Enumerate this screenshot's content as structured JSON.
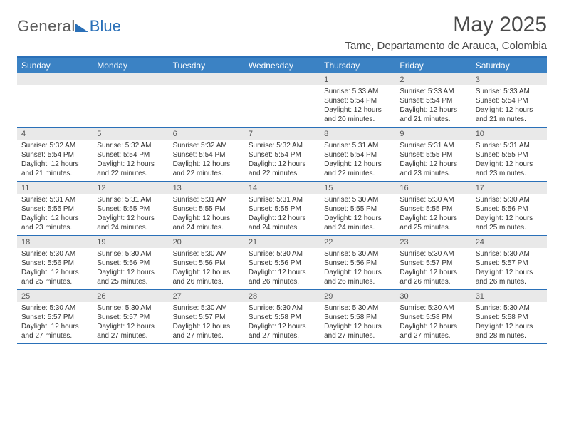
{
  "brand": {
    "part1": "General",
    "part2": "Blue"
  },
  "title": "May 2025",
  "location": "Tame, Departamento de Arauca, Colombia",
  "header_bg": "#3b82c4",
  "rule_color": "#2a70b8",
  "daynum_bg": "#e9e9e9",
  "weekdays": [
    "Sunday",
    "Monday",
    "Tuesday",
    "Wednesday",
    "Thursday",
    "Friday",
    "Saturday"
  ],
  "weeks": [
    [
      {
        "n": "",
        "sr": "",
        "ss": "",
        "dl": ""
      },
      {
        "n": "",
        "sr": "",
        "ss": "",
        "dl": ""
      },
      {
        "n": "",
        "sr": "",
        "ss": "",
        "dl": ""
      },
      {
        "n": "",
        "sr": "",
        "ss": "",
        "dl": ""
      },
      {
        "n": "1",
        "sr": "Sunrise: 5:33 AM",
        "ss": "Sunset: 5:54 PM",
        "dl": "Daylight: 12 hours and 20 minutes."
      },
      {
        "n": "2",
        "sr": "Sunrise: 5:33 AM",
        "ss": "Sunset: 5:54 PM",
        "dl": "Daylight: 12 hours and 21 minutes."
      },
      {
        "n": "3",
        "sr": "Sunrise: 5:33 AM",
        "ss": "Sunset: 5:54 PM",
        "dl": "Daylight: 12 hours and 21 minutes."
      }
    ],
    [
      {
        "n": "4",
        "sr": "Sunrise: 5:32 AM",
        "ss": "Sunset: 5:54 PM",
        "dl": "Daylight: 12 hours and 21 minutes."
      },
      {
        "n": "5",
        "sr": "Sunrise: 5:32 AM",
        "ss": "Sunset: 5:54 PM",
        "dl": "Daylight: 12 hours and 22 minutes."
      },
      {
        "n": "6",
        "sr": "Sunrise: 5:32 AM",
        "ss": "Sunset: 5:54 PM",
        "dl": "Daylight: 12 hours and 22 minutes."
      },
      {
        "n": "7",
        "sr": "Sunrise: 5:32 AM",
        "ss": "Sunset: 5:54 PM",
        "dl": "Daylight: 12 hours and 22 minutes."
      },
      {
        "n": "8",
        "sr": "Sunrise: 5:31 AM",
        "ss": "Sunset: 5:54 PM",
        "dl": "Daylight: 12 hours and 22 minutes."
      },
      {
        "n": "9",
        "sr": "Sunrise: 5:31 AM",
        "ss": "Sunset: 5:55 PM",
        "dl": "Daylight: 12 hours and 23 minutes."
      },
      {
        "n": "10",
        "sr": "Sunrise: 5:31 AM",
        "ss": "Sunset: 5:55 PM",
        "dl": "Daylight: 12 hours and 23 minutes."
      }
    ],
    [
      {
        "n": "11",
        "sr": "Sunrise: 5:31 AM",
        "ss": "Sunset: 5:55 PM",
        "dl": "Daylight: 12 hours and 23 minutes."
      },
      {
        "n": "12",
        "sr": "Sunrise: 5:31 AM",
        "ss": "Sunset: 5:55 PM",
        "dl": "Daylight: 12 hours and 24 minutes."
      },
      {
        "n": "13",
        "sr": "Sunrise: 5:31 AM",
        "ss": "Sunset: 5:55 PM",
        "dl": "Daylight: 12 hours and 24 minutes."
      },
      {
        "n": "14",
        "sr": "Sunrise: 5:31 AM",
        "ss": "Sunset: 5:55 PM",
        "dl": "Daylight: 12 hours and 24 minutes."
      },
      {
        "n": "15",
        "sr": "Sunrise: 5:30 AM",
        "ss": "Sunset: 5:55 PM",
        "dl": "Daylight: 12 hours and 24 minutes."
      },
      {
        "n": "16",
        "sr": "Sunrise: 5:30 AM",
        "ss": "Sunset: 5:55 PM",
        "dl": "Daylight: 12 hours and 25 minutes."
      },
      {
        "n": "17",
        "sr": "Sunrise: 5:30 AM",
        "ss": "Sunset: 5:56 PM",
        "dl": "Daylight: 12 hours and 25 minutes."
      }
    ],
    [
      {
        "n": "18",
        "sr": "Sunrise: 5:30 AM",
        "ss": "Sunset: 5:56 PM",
        "dl": "Daylight: 12 hours and 25 minutes."
      },
      {
        "n": "19",
        "sr": "Sunrise: 5:30 AM",
        "ss": "Sunset: 5:56 PM",
        "dl": "Daylight: 12 hours and 25 minutes."
      },
      {
        "n": "20",
        "sr": "Sunrise: 5:30 AM",
        "ss": "Sunset: 5:56 PM",
        "dl": "Daylight: 12 hours and 26 minutes."
      },
      {
        "n": "21",
        "sr": "Sunrise: 5:30 AM",
        "ss": "Sunset: 5:56 PM",
        "dl": "Daylight: 12 hours and 26 minutes."
      },
      {
        "n": "22",
        "sr": "Sunrise: 5:30 AM",
        "ss": "Sunset: 5:56 PM",
        "dl": "Daylight: 12 hours and 26 minutes."
      },
      {
        "n": "23",
        "sr": "Sunrise: 5:30 AM",
        "ss": "Sunset: 5:57 PM",
        "dl": "Daylight: 12 hours and 26 minutes."
      },
      {
        "n": "24",
        "sr": "Sunrise: 5:30 AM",
        "ss": "Sunset: 5:57 PM",
        "dl": "Daylight: 12 hours and 26 minutes."
      }
    ],
    [
      {
        "n": "25",
        "sr": "Sunrise: 5:30 AM",
        "ss": "Sunset: 5:57 PM",
        "dl": "Daylight: 12 hours and 27 minutes."
      },
      {
        "n": "26",
        "sr": "Sunrise: 5:30 AM",
        "ss": "Sunset: 5:57 PM",
        "dl": "Daylight: 12 hours and 27 minutes."
      },
      {
        "n": "27",
        "sr": "Sunrise: 5:30 AM",
        "ss": "Sunset: 5:57 PM",
        "dl": "Daylight: 12 hours and 27 minutes."
      },
      {
        "n": "28",
        "sr": "Sunrise: 5:30 AM",
        "ss": "Sunset: 5:58 PM",
        "dl": "Daylight: 12 hours and 27 minutes."
      },
      {
        "n": "29",
        "sr": "Sunrise: 5:30 AM",
        "ss": "Sunset: 5:58 PM",
        "dl": "Daylight: 12 hours and 27 minutes."
      },
      {
        "n": "30",
        "sr": "Sunrise: 5:30 AM",
        "ss": "Sunset: 5:58 PM",
        "dl": "Daylight: 12 hours and 27 minutes."
      },
      {
        "n": "31",
        "sr": "Sunrise: 5:30 AM",
        "ss": "Sunset: 5:58 PM",
        "dl": "Daylight: 12 hours and 28 minutes."
      }
    ]
  ]
}
